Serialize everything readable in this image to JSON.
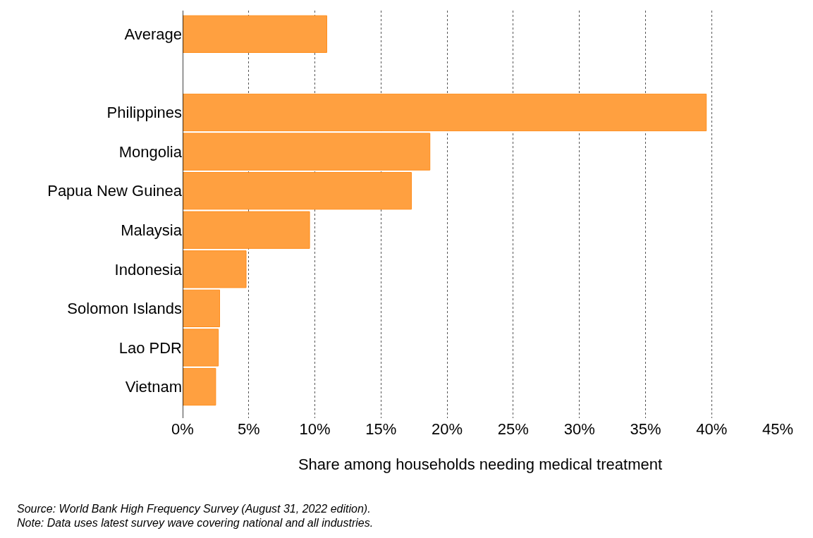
{
  "chart_data": {
    "type": "bar",
    "orientation": "horizontal",
    "categories": [
      "Average",
      null,
      "Philippines",
      "Mongolia",
      "Papua New Guinea",
      "Malaysia",
      "Indonesia",
      "Solomon Islands",
      "Lao PDR",
      "Vietnam"
    ],
    "values": [
      10.9,
      null,
      39.6,
      18.7,
      17.3,
      9.6,
      4.8,
      2.8,
      2.7,
      2.5
    ],
    "color": "#ffa040",
    "xlabel": "Share among households needing medical treatment",
    "xlim": [
      0,
      45
    ],
    "xticks": [
      {
        "value": 0,
        "label": "0%"
      },
      {
        "value": 5,
        "label": "5%"
      },
      {
        "value": 10,
        "label": "10%"
      },
      {
        "value": 15,
        "label": "15%"
      },
      {
        "value": 20,
        "label": "20%"
      },
      {
        "value": 25,
        "label": "25%"
      },
      {
        "value": 30,
        "label": "30%"
      },
      {
        "value": 35,
        "label": "35%"
      },
      {
        "value": 40,
        "label": "40%"
      },
      {
        "value": 45,
        "label": "45%"
      }
    ],
    "grid": "x",
    "annotations": [
      "Source: World Bank High Frequency Survey (August 31, 2022 edition).",
      "Note: Data uses latest survey wave covering national and all industries."
    ]
  }
}
